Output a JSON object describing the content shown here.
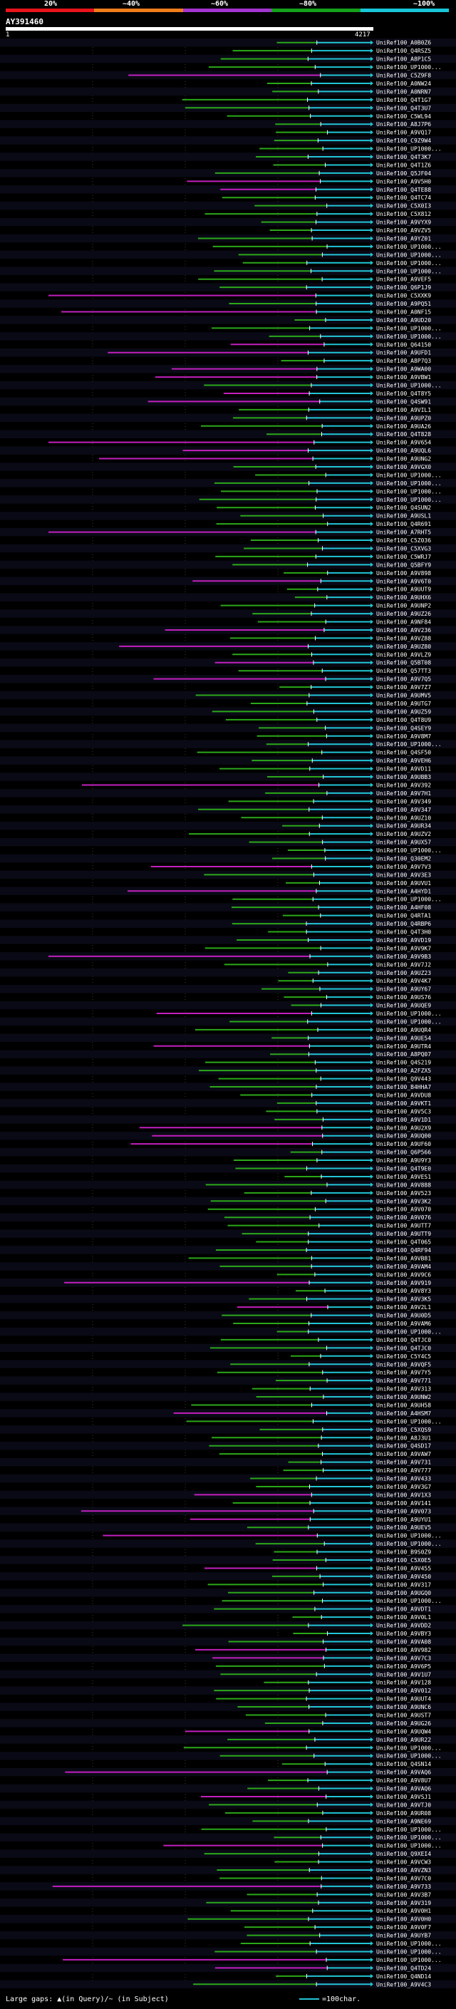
{
  "legend": {
    "labels": [
      "20%",
      "~40%",
      "~60%",
      "~80%",
      "~100%"
    ],
    "colors": [
      "#e8141c",
      "#f07d1c",
      "#a335d0",
      "#15a11c",
      "#19c6d9"
    ]
  },
  "title": "AY391460",
  "scale": {
    "start": "1",
    "end": "4217"
  },
  "footer": {
    "gaps": "Large gaps: ▲(in Query)/~ (in Subject)",
    "key": "=100char."
  },
  "colors": {
    "cyan": "#22c5d6",
    "green": "#2ba81a",
    "magenta": "#c21fbe"
  },
  "chart_data": {
    "type": "alignment_overview",
    "query_length": 4217,
    "hits": [
      "UniRef100_A0B0Z6",
      "UniRef100_Q4RSZ5",
      "UniRef100_A8P1C5",
      "UniRef100_UP1000...",
      "UniRef100_C5Z9F8",
      "UniRef100_A0NW24",
      "UniRef100_A0NRN7",
      "UniRef100_Q4T1G7",
      "UniRef100_Q4T3U7",
      "UniRef100_C5WL94",
      "UniRef100_A8J7P6",
      "UniRef100_A9VQ17",
      "UniRef100_C9Z9W4",
      "UniRef100_UP1000...",
      "UniRef100_Q4T3K7",
      "UniRef100_Q4T1Z6",
      "UniRef100_Q5JF04",
      "UniRef100_A9V5H0",
      "UniRef100_Q4TE88",
      "UniRef100_Q4TC74",
      "UniRef100_C5X0I3",
      "UniRef100_C5X812",
      "UniRef100_A9VYX9",
      "UniRef100_A9VZV5",
      "UniRef100_A9YZ01",
      "UniRef100_UP1000...",
      "UniRef100_UP1000...",
      "UniRef100_UP1000...",
      "UniRef100_UP1000...",
      "UniRef100_A9VEF5",
      "UniRef100_Q6P1J9",
      "UniRef100_C5XXK9",
      "UniRef100_A9PQ51",
      "UniRef100_A0NF15",
      "UniRef100_A9UD20",
      "UniRef100_UP1000...",
      "UniRef100_UP1000...",
      "UniRef100_Q64150",
      "UniRef100_A9UFD1",
      "UniRef100_A8P7Q3",
      "UniRef100_A9WA00",
      "UniRef100_A9VBW1",
      "UniRef100_UP1000...",
      "UniRef100_Q4T8Y5",
      "UniRef100_Q4SW91",
      "UniRef100_A9VIL1",
      "UniRef100_A9UPZ0",
      "UniRef100_A9UA26",
      "UniRef100_Q4T828",
      "UniRef100_A9V654",
      "UniRef100_A9UQL6",
      "UniRef100_A9UNG2",
      "UniRef100_A9VGX0",
      "UniRef100_UP1000...",
      "UniRef100_UP1000...",
      "UniRef100_UP1000...",
      "UniRef100_UP1000...",
      "UniRef100_Q4SUN2",
      "UniRef100_A9USL1",
      "UniRef100_Q4R691",
      "UniRef100_A7RHT5",
      "UniRef100_C5Z036",
      "UniRef100_C5XVG3",
      "UniRef100_C5WRJ7",
      "UniRef100_Q5BFY9",
      "UniRef100_A9V898",
      "UniRef100_A9V6T0",
      "UniRef100_A9UUT9",
      "UniRef100_A9UHX6",
      "UniRef100_A9UNP2",
      "UniRef100_A9UZ26",
      "UniRef100_A9NF84",
      "UniRef100_A9V236",
      "UniRef100_A9VZ88",
      "UniRef100_A9UZ80",
      "UniRef100_A9VLZ9",
      "UniRef100_Q5BT08",
      "UniRef100_Q57TT3",
      "UniRef100_A9V7Q5",
      "UniRef100_A9V7Z7",
      "UniRef100_A9UMV5",
      "UniRef100_A9UTG7",
      "UniRef100_A9UZ59",
      "UniRef100_Q4T8U9",
      "UniRef100_Q4SEY9",
      "UniRef100_A9V8M7",
      "UniRef100_UP1000...",
      "UniRef100_Q4SF50",
      "UniRef100_A9VEH6",
      "UniRef100_A9VD11",
      "UniRef100_A9UBB3",
      "UniRef100_A9V392",
      "UniRef100_A9V7H1",
      "UniRef100_A9V349",
      "UniRef100_A9V347",
      "UniRef100_A9UZ10",
      "UniRef100_A9UR34",
      "UniRef100_A9UZV2",
      "UniRef100_A9UX57",
      "UniRef100_UP1000...",
      "UniRef100_Q30EM2",
      "UniRef100_A9V7V3",
      "UniRef100_A9V3E3",
      "UniRef100_A9UVU1",
      "UniRef100_A4HYD1",
      "UniRef100_UP1000...",
      "UniRef100_A4HF08",
      "UniRef100_Q4RTA1",
      "UniRef100_Q4RBP6",
      "UniRef100_Q4T3H0",
      "UniRef100_A9VD19",
      "UniRef100_A9V9K7",
      "UniRef100_A9V9B3",
      "UniRef100_A9V7J2",
      "UniRef100_A9UZ23",
      "UniRef100_A9V4K7",
      "UniRef100_A9UY67",
      "UniRef100_A9US76",
      "UniRef100_A9UQE9",
      "UniRef100_UP1000...",
      "UniRef100_UP1000...",
      "UniRef100_A9UQR4",
      "UniRef100_A9UE54",
      "UniRef100_A9UTR4",
      "UniRef100_A8PQ07",
      "UniRef100_Q4S219",
      "UniRef100_A2FZX5",
      "UniRef100_Q9V443",
      "UniRef100_B4HHA7",
      "UniRef100_A9VDU8",
      "UniRef100_A9VKT1",
      "UniRef100_A9V5C3",
      "UniRef100_A9V1D1",
      "UniRef100_A9U2X9",
      "UniRef100_A9UQ00",
      "UniRef100_A9UF60",
      "UniRef100_Q6P566",
      "UniRef100_A9U9Y3",
      "UniRef100_Q4T9E0",
      "UniRef100_A9VES1",
      "UniRef100_A9V888",
      "UniRef100_A9V523",
      "UniRef100_A9V3K2",
      "UniRef100_A9V070",
      "UniRef100_A9V076",
      "UniRef100_A9UTT7",
      "UniRef100_A9UTT9",
      "UniRef100_Q4T065",
      "UniRef100_Q4RF94",
      "UniRef100_A9VB81",
      "UniRef100_A9VAM4",
      "UniRef100_A9V9C6",
      "UniRef100_A9V919",
      "UniRef100_A9V8Y3",
      "UniRef100_A9V3K5",
      "UniRef100_A9V2L1",
      "UniRef100_A9U0D5",
      "UniRef100_A9VAM6",
      "UniRef100_UP1000...",
      "UniRef100_Q4TJC0",
      "UniRef100_Q4TJC0",
      "UniRef100_C5Y4C5",
      "UniRef100_A9VQF5",
      "UniRef100_A9V7Y5",
      "UniRef100_A9V771",
      "UniRef100_A9V313",
      "UniRef100_A9UNW2",
      "UniRef100_A9UH58",
      "UniRef100_A4HSM7",
      "UniRef100_UP1000...",
      "UniRef100_C5XQS9",
      "UniRef100_A8J3U1",
      "UniRef100_Q4SD17",
      "UniRef100_A9VAW7",
      "UniRef100_A9V731",
      "UniRef100_A9V777",
      "UniRef100_A9V433",
      "UniRef100_A9V3G7",
      "UniRef100_A9V1X3",
      "UniRef100_A9V141",
      "UniRef100_A9V073",
      "UniRef100_A9UYU1",
      "UniRef100_A9UEV5",
      "UniRef100_UP1000...",
      "UniRef100_UP1000...",
      "UniRef100_B9S0Z9",
      "UniRef100_C5X0E5",
      "UniRef100_A9V455",
      "UniRef100_A9V450",
      "UniRef100_A9V317",
      "UniRef100_A9UGQ0",
      "UniRef100_UP1000...",
      "UniRef100_A9VDT1",
      "UniRef100_A9V0L1",
      "UniRef100_A9VDD2",
      "UniRef100_A9VBY3",
      "UniRef100_A9VA08",
      "UniRef100_A9V982",
      "UniRef100_A9V7C3",
      "UniRef100_A9V6P5",
      "UniRef100_A9V1U7",
      "UniRef100_A9V128",
      "UniRef100_A9V012",
      "UniRef100_A9UUT4",
      "UniRef100_A9UNC6",
      "UniRef100_A9UST7",
      "UniRef100_A9UG26",
      "UniRef100_A9UQW4",
      "UniRef100_A9UR22",
      "UniRef100_UP1000...",
      "UniRef100_UP1000...",
      "UniRef100_Q4SN14",
      "UniRef100_A9VAQ6",
      "UniRef100_A9V8U7",
      "UniRef100_A9VAQ6",
      "UniRef100_A9VSJ1",
      "UniRef100_A9VTJ0",
      "UniRef100_A9UR08",
      "UniRef100_A9NE69",
      "UniRef100_UP1000...",
      "UniRef100_UP1000...",
      "UniRef100_UP1000...",
      "UniRef100_Q9XEI4",
      "UniRef100_A9VCW3",
      "UniRef100_A9VZN3",
      "UniRef100_A9V7C0",
      "UniRef100_A9V733",
      "UniRef100_A9V3B7",
      "UniRef100_A9V319",
      "UniRef100_A9V0H1",
      "UniRef100_A9V0H0",
      "UniRef100_A9V0F7",
      "UniRef100_A9UYB7",
      "UniRef100_UP1000...",
      "UniRef100_UP1000...",
      "UniRef100_UP1000...",
      "UniRef100_Q4TD24",
      "UniRef100_Q4ND14",
      "UniRef100_A9V4C3"
    ]
  }
}
